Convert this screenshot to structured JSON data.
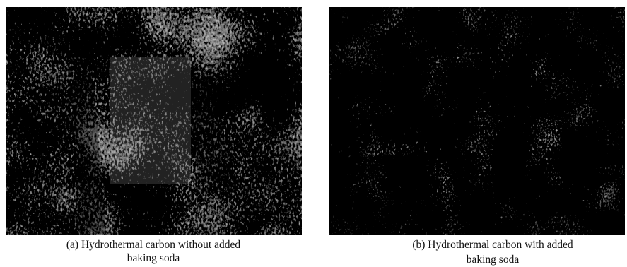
{
  "figures": [
    {
      "caption": [
        "(a) Hydrothermal carbon without added",
        "baking soda"
      ]
    },
    {
      "caption": [
        "(b) Hydrothermal carbon with added",
        "baking soda"
      ]
    }
  ]
}
